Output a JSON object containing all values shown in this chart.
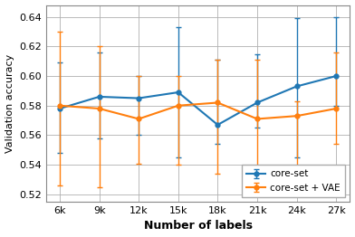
{
  "x_labels": [
    "6k",
    "9k",
    "12k",
    "15k",
    "18k",
    "21k",
    "24k",
    "27k"
  ],
  "coreset_y": [
    0.578,
    0.586,
    0.585,
    0.589,
    0.567,
    0.582,
    0.593,
    0.6
  ],
  "coreset_yerr_upper": [
    0.031,
    0.03,
    0.015,
    0.044,
    0.044,
    0.033,
    0.046,
    0.04
  ],
  "coreset_yerr_lower": [
    0.03,
    0.028,
    0.025,
    0.044,
    0.013,
    0.017,
    0.048,
    0.02
  ],
  "vae_y": [
    0.58,
    0.578,
    0.571,
    0.58,
    0.582,
    0.571,
    0.573,
    0.578
  ],
  "vae_yerr_upper": [
    0.05,
    0.042,
    0.029,
    0.02,
    0.029,
    0.04,
    0.01,
    0.038
  ],
  "vae_yerr_lower": [
    0.054,
    0.053,
    0.03,
    0.04,
    0.048,
    0.036,
    0.04,
    0.024
  ],
  "coreset_color": "#1f77b4",
  "vae_color": "#ff7f0e",
  "ylabel": "Validation accuracy",
  "xlabel": "Number of labels",
  "ylim": [
    0.515,
    0.648
  ],
  "yticks": [
    0.52,
    0.54,
    0.56,
    0.58,
    0.6,
    0.62,
    0.64
  ],
  "legend_labels": [
    "core-set",
    "core-set + VAE"
  ],
  "grid_color": "#b0b0b0",
  "background_color": "#ffffff"
}
